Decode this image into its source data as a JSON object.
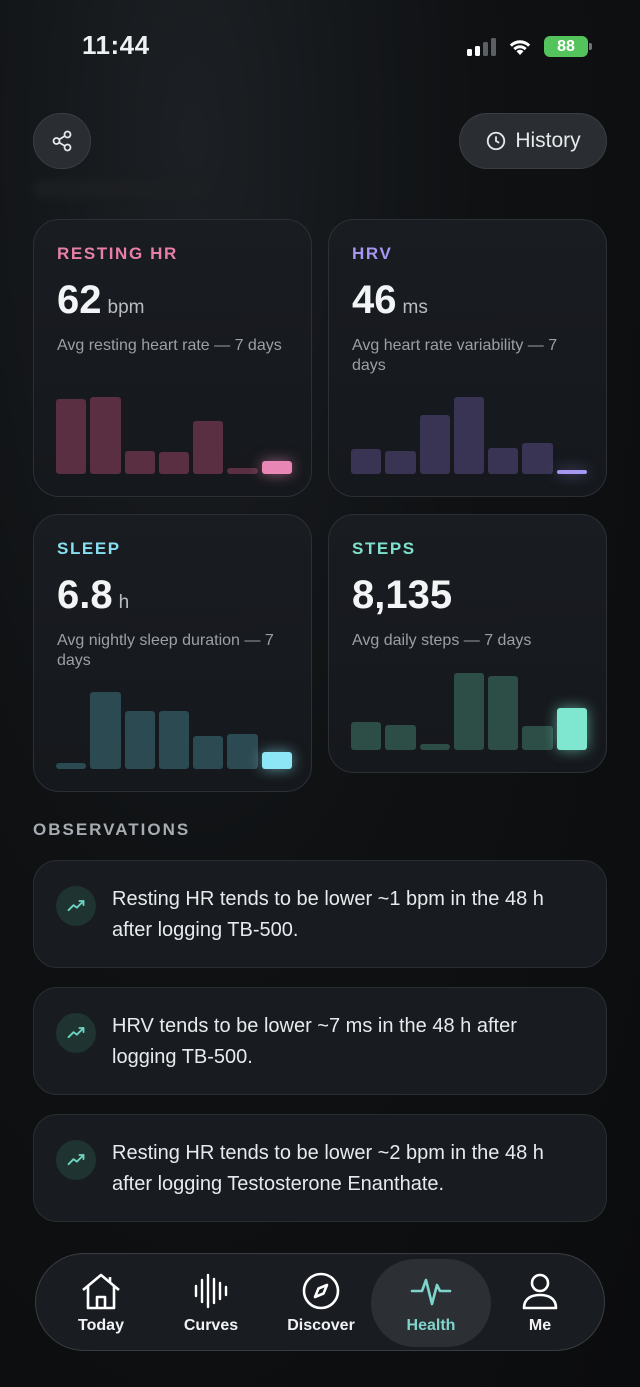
{
  "status_bar": {
    "time": "11:44",
    "battery": "88"
  },
  "header": {
    "history_label": "History"
  },
  "cards": [
    {
      "label": "RESTING HR",
      "value": "62",
      "unit": "bpm",
      "description": "Avg resting heart rate — 7 days",
      "accent": "#e87fa8",
      "bar_color": "#5a2f42",
      "highlight_color": "#e887b5",
      "bars": [
        0.68,
        0.7,
        0.21,
        0.2,
        0.48,
        0.05,
        0.12
      ]
    },
    {
      "label": "HRV",
      "value": "46",
      "unit": "ms",
      "description": "Avg heart rate variability — 7 days",
      "accent": "#a596f2",
      "bar_color": "#3a3454",
      "highlight_color": "#a596f2",
      "bars": [
        0.23,
        0.21,
        0.54,
        0.7,
        0.24,
        0.28,
        0.04
      ]
    },
    {
      "label": "SLEEP",
      "value": "6.8",
      "unit": "h",
      "description": "Avg nightly sleep duration — 7 days",
      "accent": "#86dff0",
      "bar_color": "#2c4a52",
      "highlight_color": "#8ce6f6",
      "bars": [
        0.05,
        0.7,
        0.53,
        0.53,
        0.3,
        0.32,
        0.15
      ]
    },
    {
      "label": "STEPS",
      "value": "8,135",
      "unit": "",
      "description": "Avg daily steps — 7 days",
      "accent": "#7ee0cd",
      "bar_color": "#2d4d47",
      "highlight_color": "#7fe6cf",
      "bars": [
        0.25,
        0.23,
        0.05,
        0.7,
        0.67,
        0.22,
        0.38
      ]
    }
  ],
  "observations_title": "OBSERVATIONS",
  "observations": [
    "Resting HR tends to be lower ~1 bpm in the 48 h after logging TB-500.",
    "HRV tends to be lower ~7 ms in the 48 h after logging TB-500.",
    "Resting HR tends to be lower ~2 bpm in the 48 h after logging Testosterone Enanthate."
  ],
  "nav": {
    "items": [
      {
        "label": "Today",
        "icon": "home-icon"
      },
      {
        "label": "Curves",
        "icon": "waveform-icon"
      },
      {
        "label": "Discover",
        "icon": "compass-icon"
      },
      {
        "label": "Health",
        "icon": "heartbeat-icon"
      },
      {
        "label": "Me",
        "icon": "person-icon"
      }
    ],
    "active": "Health"
  }
}
